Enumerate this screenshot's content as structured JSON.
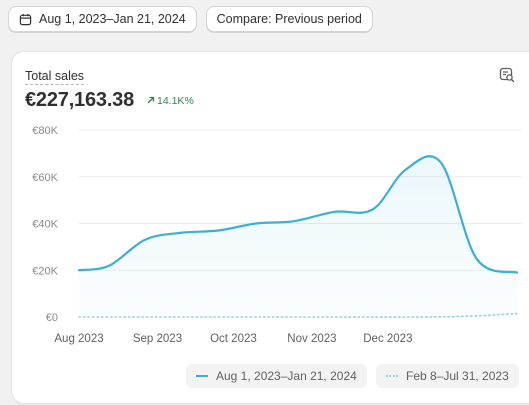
{
  "toolbar": {
    "date_range_label": "Aug 1, 2023–Jan 21, 2024",
    "compare_label": "Compare: Previous period",
    "date_icon": "calendar-icon"
  },
  "metric": {
    "title": "Total sales",
    "value": "€227,163.38",
    "change": "14.1K%",
    "change_icon": "arrow-up-right-icon",
    "action_icon": "explore-report-icon"
  },
  "colors": {
    "primary_series": "#3ab0d6",
    "comparison_series": "#9ccfe8",
    "positive_change": "#29845a"
  },
  "chart_data": {
    "type": "area",
    "x_tick_labels": [
      "Aug 2023",
      "Sep 2023",
      "Oct 2023",
      "Nov 2023",
      "Dec 2023"
    ],
    "y_tick_labels": [
      "€0",
      "€20K",
      "€40K",
      "€60K",
      "€80K"
    ],
    "ylim": [
      0,
      80000
    ],
    "grid": true,
    "legend_position": "bottom-right",
    "series": [
      {
        "name": "Aug 1, 2023–Jan 21, 2024",
        "style": "solid",
        "x": [
          "2023-08-01",
          "2023-08-13",
          "2023-08-27",
          "2023-09-10",
          "2023-09-25",
          "2023-10-10",
          "2023-10-25",
          "2023-11-10",
          "2023-11-25",
          "2023-12-08",
          "2023-12-22",
          "2024-01-05",
          "2024-01-21"
        ],
        "values": [
          20000,
          22000,
          33000,
          36000,
          37000,
          40000,
          41000,
          45000,
          46000,
          63000,
          66000,
          25000,
          19000
        ]
      },
      {
        "name": "Feb 8–Jul 31, 2023",
        "style": "dotted",
        "x": [
          "2023-08-01",
          "2023-09-15",
          "2023-10-30",
          "2023-12-15",
          "2024-01-05",
          "2024-01-21"
        ],
        "values": [
          0,
          0,
          0,
          0,
          500,
          1500
        ]
      }
    ]
  }
}
